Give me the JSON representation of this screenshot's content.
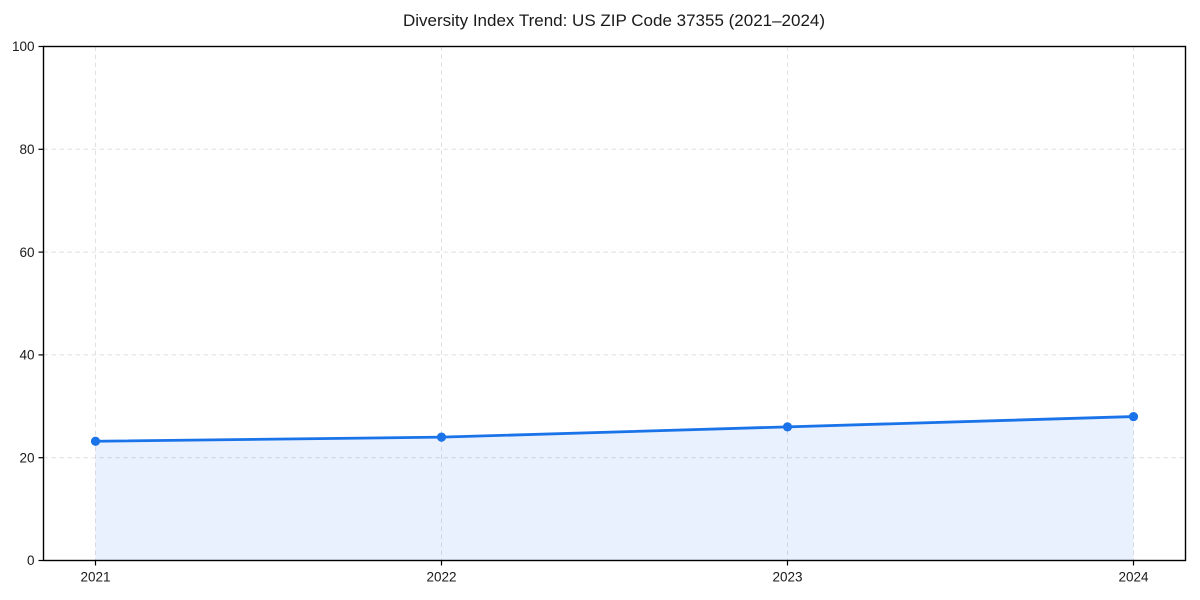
{
  "figure": {
    "background": "#ffffff"
  },
  "chart_data": {
    "type": "line",
    "area_fill": true,
    "title": "Diversity Index Trend: US ZIP Code 37355 (2021–2024)",
    "categories": [
      "2021",
      "2022",
      "2023",
      "2024"
    ],
    "series": [
      {
        "name": "Diversity Index",
        "values": [
          23.2,
          24.0,
          26.0,
          28.0
        ]
      }
    ],
    "xlabel": "",
    "ylabel": "",
    "ylim": [
      0,
      100
    ],
    "yticks": [
      0,
      20,
      40,
      60,
      80,
      100
    ],
    "grid": {
      "visible": true,
      "style": "dashed",
      "color": "#e0e0e0"
    },
    "legend": {
      "visible": false
    },
    "line_color": "#1a73e8",
    "fill_opacity": 0.1,
    "marker": "circle",
    "axis_color": "#000000",
    "text_color": "#1a1a1a",
    "tick_font_size": 13.5,
    "title_font_size": 17
  }
}
